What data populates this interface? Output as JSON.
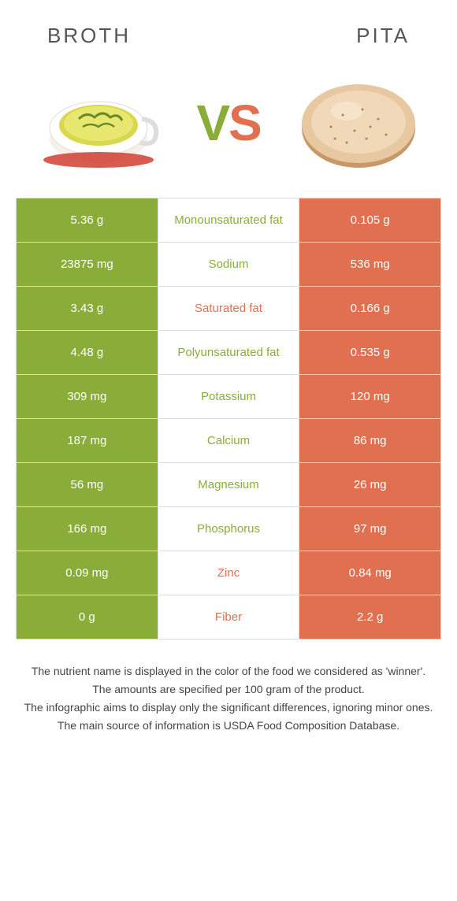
{
  "colors": {
    "green": "#8aad3a",
    "orange": "#e07050",
    "border": "#dddddd",
    "text": "#555555",
    "background": "#ffffff"
  },
  "food_left": {
    "name": "BROTH"
  },
  "food_right": {
    "name": "PITA"
  },
  "vs": {
    "v": "V",
    "s": "S"
  },
  "rows": [
    {
      "left": "5.36 g",
      "label": "Monounsaturated fat",
      "right": "0.105 g",
      "winner": "green"
    },
    {
      "left": "23875 mg",
      "label": "Sodium",
      "right": "536 mg",
      "winner": "green"
    },
    {
      "left": "3.43 g",
      "label": "Saturated fat",
      "right": "0.166 g",
      "winner": "orange"
    },
    {
      "left": "4.48 g",
      "label": "Polyunsaturated fat",
      "right": "0.535 g",
      "winner": "green"
    },
    {
      "left": "309 mg",
      "label": "Potassium",
      "right": "120 mg",
      "winner": "green"
    },
    {
      "left": "187 mg",
      "label": "Calcium",
      "right": "86 mg",
      "winner": "green"
    },
    {
      "left": "56 mg",
      "label": "Magnesium",
      "right": "26 mg",
      "winner": "green"
    },
    {
      "left": "166 mg",
      "label": "Phosphorus",
      "right": "97 mg",
      "winner": "green"
    },
    {
      "left": "0.09 mg",
      "label": "Zinc",
      "right": "0.84 mg",
      "winner": "orange"
    },
    {
      "left": "0 g",
      "label": "Fiber",
      "right": "2.2 g",
      "winner": "orange"
    }
  ],
  "footer": {
    "line1": "The nutrient name is displayed in the color of the food we considered as 'winner'.",
    "line2": "The amounts are specified per 100 gram of the product.",
    "line3": "The infographic aims to display only the significant differences, ignoring minor ones.",
    "line4": "The main source of information is USDA Food Composition Database."
  }
}
